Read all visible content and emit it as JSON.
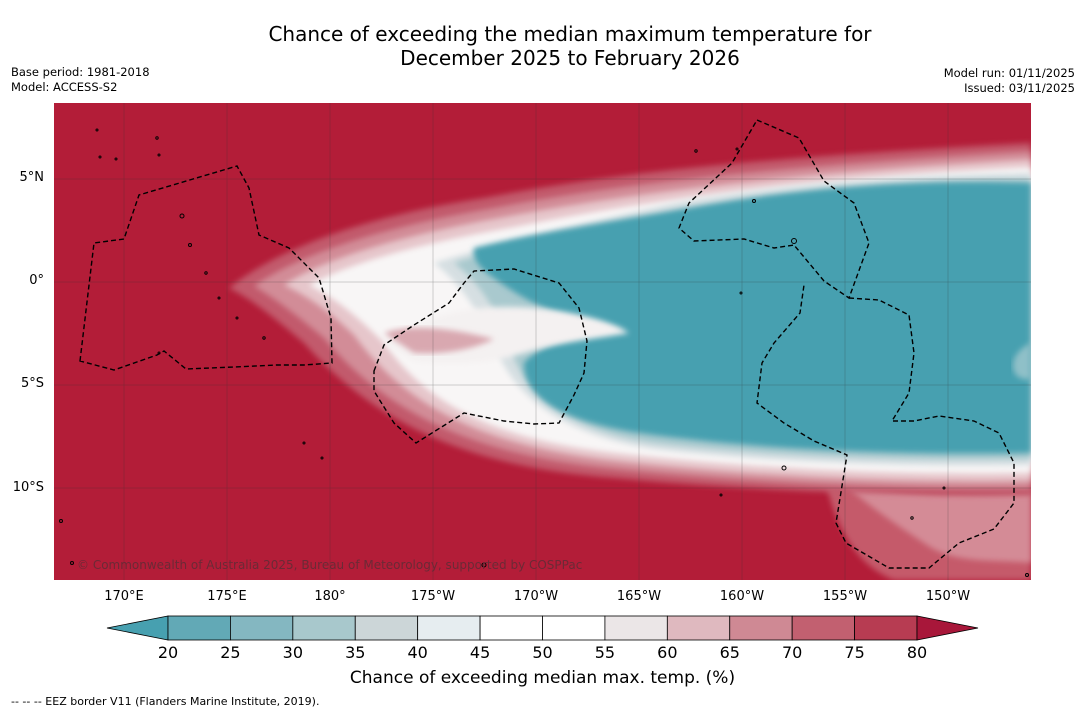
{
  "title": {
    "line1": "Chance of exceeding the median maximum temperature for",
    "line2": "December 2025 to February 2026"
  },
  "meta_left": {
    "base_period": "Base period: 1981-2018",
    "model": "Model: ACCESS-S2"
  },
  "meta_right": {
    "model_run": "Model run: 01/11/2025",
    "issued": "Issued: 03/11/2025"
  },
  "map": {
    "lat_labels": [
      "5°N",
      "0°",
      "5°S",
      "10°S"
    ],
    "lon_labels": [
      "170°E",
      "175°E",
      "180°",
      "175°W",
      "170°W",
      "165°W",
      "160°W",
      "155°W",
      "150°W"
    ],
    "copyright": "© Commonwealth of Australia 2025, Bureau of Meteorology, supported by COSPPac",
    "colors": {
      "hot": "#b31d38",
      "cool": "#47a0b0",
      "neutral": "#ffffff"
    }
  },
  "colorbar": {
    "ticks": [
      "20",
      "25",
      "30",
      "35",
      "40",
      "45",
      "50",
      "55",
      "60",
      "65",
      "70",
      "75",
      "80"
    ],
    "colors": [
      "#62a9b6",
      "#84b7c1",
      "#a8c8cc",
      "#ccd6d8",
      "#e6edf0",
      "#ffffff",
      "#ffffff",
      "#ebe6e7",
      "#dfb9bf",
      "#cf8994",
      "#c26070",
      "#b73c52"
    ],
    "low_extend": "#47a0b0",
    "high_extend": "#a8173a",
    "label": "Chance of exceeding median max. temp. (%)"
  },
  "footnote": "--  --  -- EEZ border V11 (Flanders Marine Institute, 2019)."
}
